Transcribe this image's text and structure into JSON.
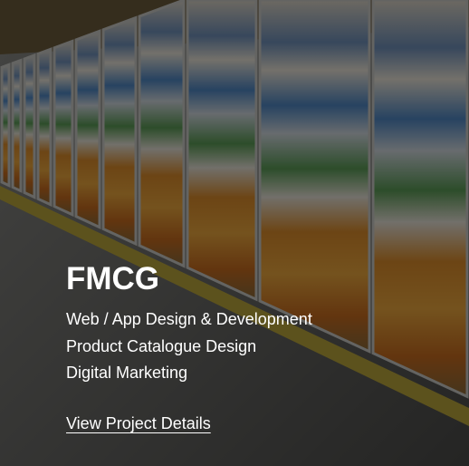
{
  "card": {
    "title": "FMCG",
    "services": [
      "Web / App Design & Development",
      "Product Catalogue Design",
      "Digital Marketing"
    ],
    "link": "View Project Details"
  }
}
